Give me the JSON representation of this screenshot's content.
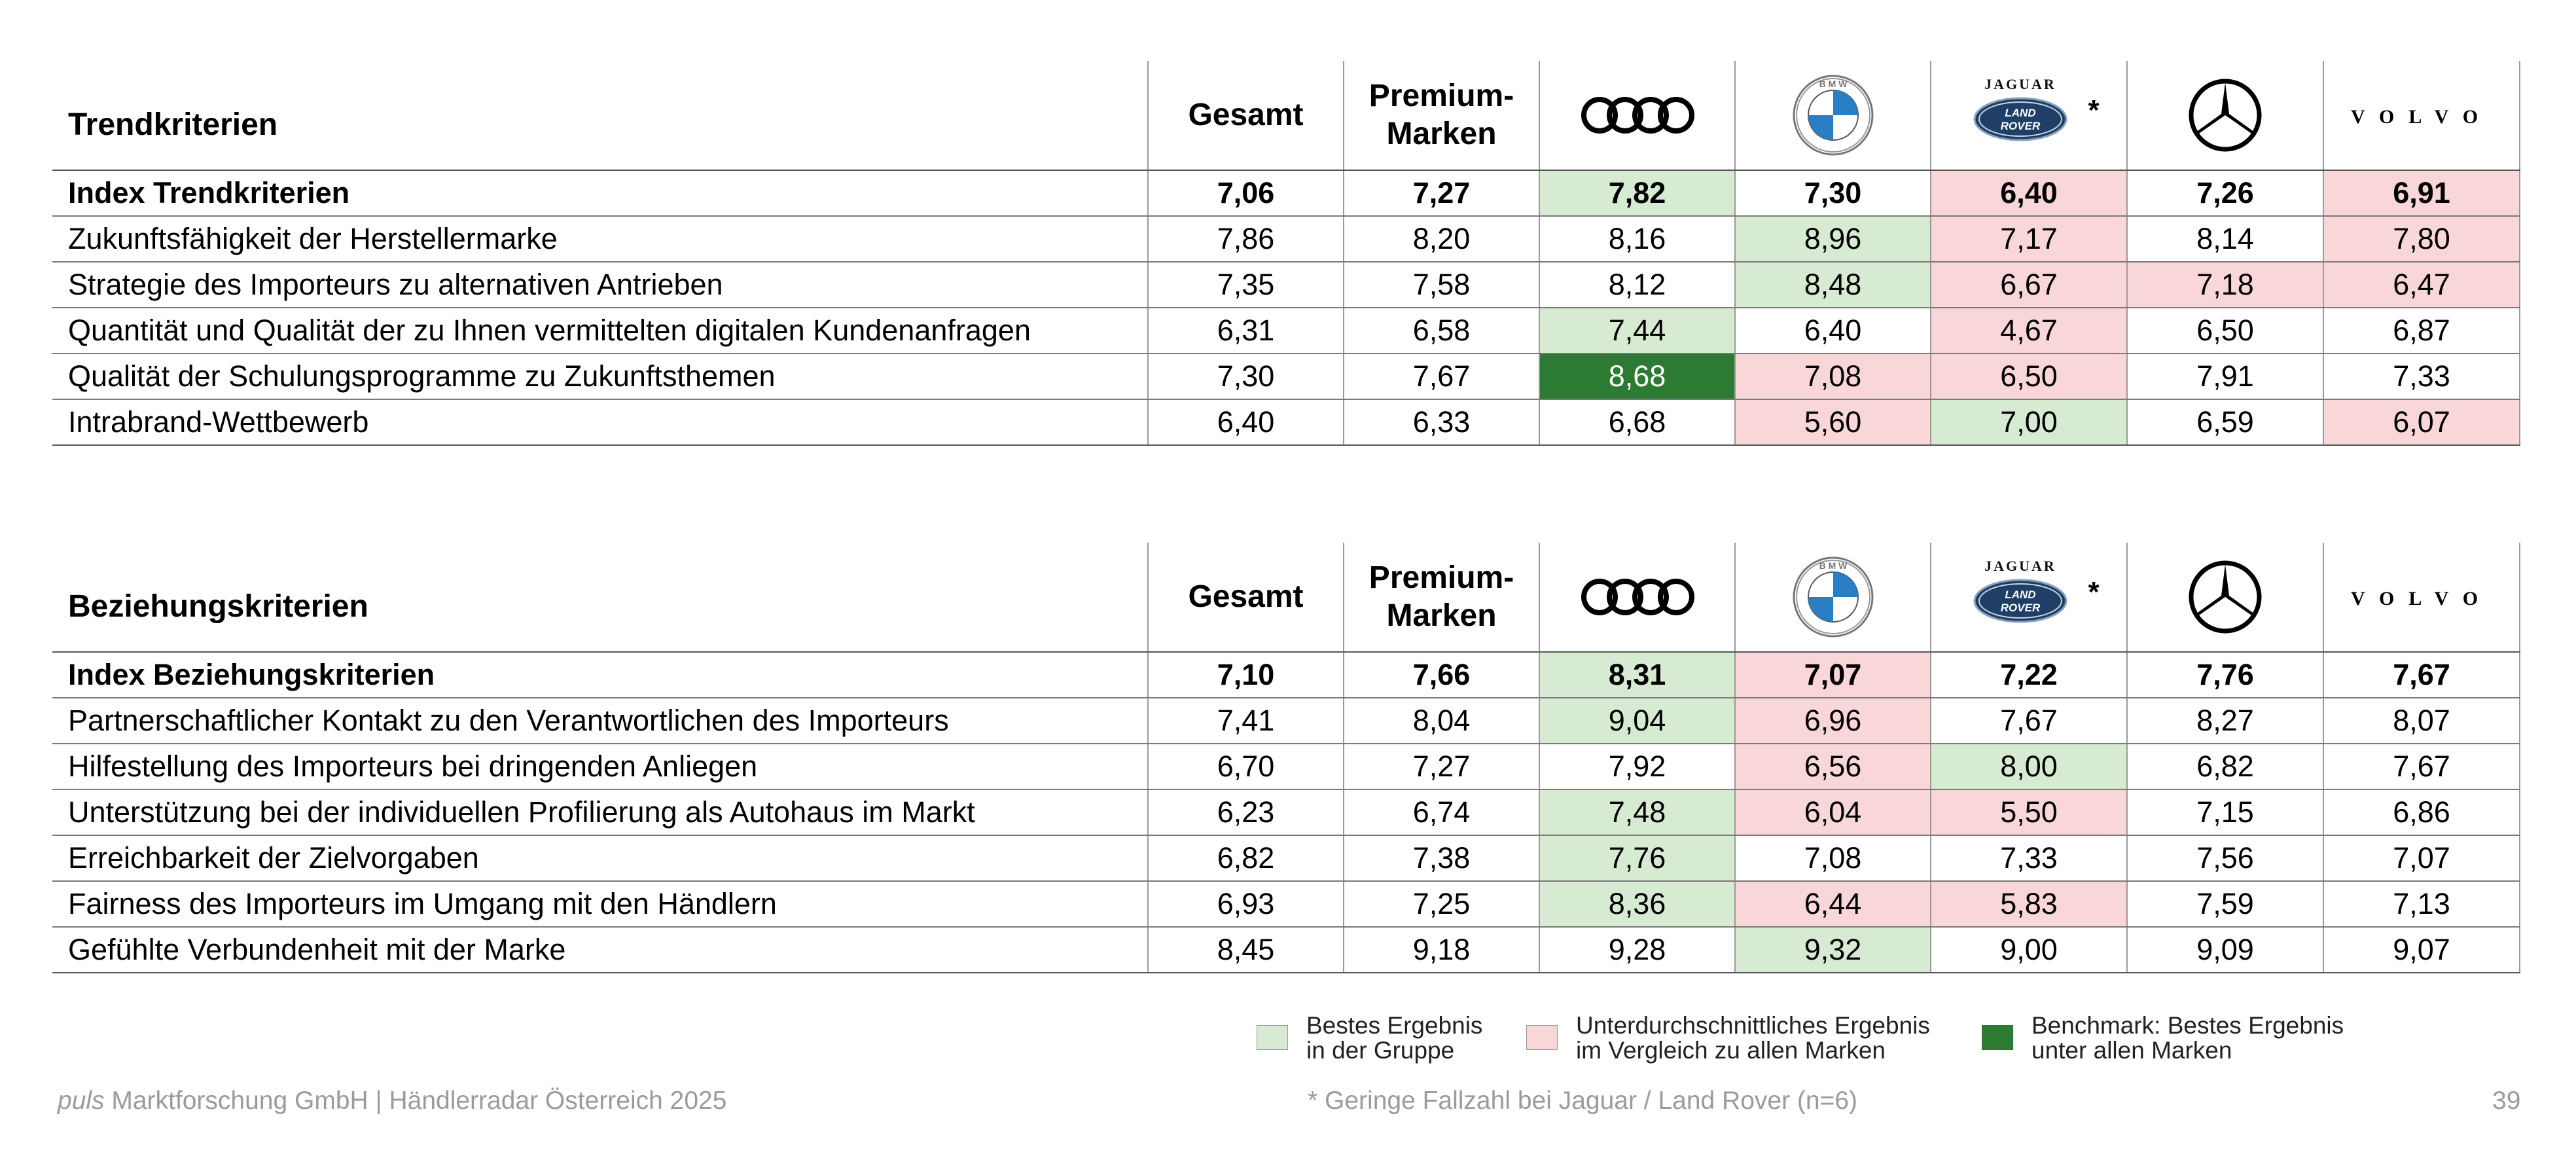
{
  "columns": {
    "gesamt": "Gesamt",
    "premium": "Premium-Marken",
    "brands": [
      "audi-logo",
      "bmw-logo",
      "jaguar-land-rover-logo",
      "mercedes-logo",
      "volvo-logo"
    ],
    "jaguar_wordmark": "JAGUAR",
    "landrover_wordmark_1": "LAND",
    "landrover_wordmark_2": "ROVER",
    "bmw_letters": "BMW",
    "volvo_wordmark": "VOLVO",
    "jlr_note_marker": "*"
  },
  "tables": [
    {
      "title": "Trendkriterien",
      "rows": [
        {
          "label": "Index Trendkriterien",
          "bold": true,
          "values": [
            "7,06",
            "7,27",
            "7,82",
            "7,30",
            "6,40",
            "7,26",
            "6,91"
          ],
          "shading": [
            "",
            "",
            "best",
            "",
            "below",
            "",
            "below"
          ]
        },
        {
          "label": "Zukunftsfähigkeit der Herstellermarke",
          "values": [
            "7,86",
            "8,20",
            "8,16",
            "8,96",
            "7,17",
            "8,14",
            "7,80"
          ],
          "shading": [
            "",
            "",
            "",
            "best",
            "below",
            "",
            "below"
          ]
        },
        {
          "label": "Strategie des Importeurs zu alternativen Antrieben",
          "values": [
            "7,35",
            "7,58",
            "8,12",
            "8,48",
            "6,67",
            "7,18",
            "6,47"
          ],
          "shading": [
            "",
            "",
            "",
            "best",
            "below",
            "below",
            "below"
          ]
        },
        {
          "label": "Quantität und Qualität der zu Ihnen vermittelten digitalen Kundenanfragen",
          "values": [
            "6,31",
            "6,58",
            "7,44",
            "6,40",
            "4,67",
            "6,50",
            "6,87"
          ],
          "shading": [
            "",
            "",
            "best",
            "",
            "below",
            "",
            ""
          ]
        },
        {
          "label": "Qualität der Schulungsprogramme zu Zukunftsthemen",
          "values": [
            "7,30",
            "7,67",
            "8,68",
            "7,08",
            "6,50",
            "7,91",
            "7,33"
          ],
          "shading": [
            "",
            "",
            "bench",
            "below",
            "below",
            "",
            ""
          ]
        },
        {
          "label": "Intrabrand-Wettbewerb",
          "values": [
            "6,40",
            "6,33",
            "6,68",
            "5,60",
            "7,00",
            "6,59",
            "6,07"
          ],
          "shading": [
            "",
            "",
            "",
            "below",
            "best",
            "",
            "below"
          ]
        }
      ]
    },
    {
      "title": "Beziehungskriterien",
      "rows": [
        {
          "label": "Index Beziehungskriterien",
          "bold": true,
          "values": [
            "7,10",
            "7,66",
            "8,31",
            "7,07",
            "7,22",
            "7,76",
            "7,67"
          ],
          "shading": [
            "",
            "",
            "best",
            "below",
            "",
            "",
            ""
          ]
        },
        {
          "label": "Partnerschaftlicher Kontakt zu den Verantwortlichen des Importeurs",
          "values": [
            "7,41",
            "8,04",
            "9,04",
            "6,96",
            "7,67",
            "8,27",
            "8,07"
          ],
          "shading": [
            "",
            "",
            "best",
            "below",
            "",
            "",
            ""
          ]
        },
        {
          "label": "Hilfestellung des Importeurs bei dringenden Anliegen",
          "values": [
            "6,70",
            "7,27",
            "7,92",
            "6,56",
            "8,00",
            "6,82",
            "7,67"
          ],
          "shading": [
            "",
            "",
            "",
            "below",
            "best",
            "",
            ""
          ]
        },
        {
          "label": "Unterstützung bei der individuellen Profilierung als Autohaus im Markt",
          "values": [
            "6,23",
            "6,74",
            "7,48",
            "6,04",
            "5,50",
            "7,15",
            "6,86"
          ],
          "shading": [
            "",
            "",
            "best",
            "below",
            "below",
            "",
            ""
          ]
        },
        {
          "label": "Erreichbarkeit der Zielvorgaben",
          "values": [
            "6,82",
            "7,38",
            "7,76",
            "7,08",
            "7,33",
            "7,56",
            "7,07"
          ],
          "shading": [
            "",
            "",
            "best",
            "",
            "",
            "",
            ""
          ]
        },
        {
          "label": "Fairness des Importeurs im Umgang mit den Händlern",
          "values": [
            "6,93",
            "7,25",
            "8,36",
            "6,44",
            "5,83",
            "7,59",
            "7,13"
          ],
          "shading": [
            "",
            "",
            "best",
            "below",
            "below",
            "",
            ""
          ]
        },
        {
          "label": "Gefühlte Verbundenheit mit der Marke",
          "values": [
            "8,45",
            "9,18",
            "9,28",
            "9,32",
            "9,00",
            "9,09",
            "9,07"
          ],
          "shading": [
            "",
            "",
            "",
            "best",
            "",
            "",
            ""
          ]
        }
      ]
    }
  ],
  "legend": [
    {
      "kind": "best",
      "line1": "Bestes Ergebnis",
      "line2": "in der Gruppe",
      "color": "#d7ead2"
    },
    {
      "kind": "below",
      "line1": "Unterdurchschnittliches Ergebnis",
      "line2": "im Vergleich zu allen Marken",
      "color": "#f9d6d8"
    },
    {
      "kind": "bench",
      "line1": "Benchmark: Bestes Ergebnis",
      "line2": "unter allen Marken",
      "color": "#2d7a33"
    }
  ],
  "footer": {
    "company_italic": "puls",
    "company_rest": " Marktforschung GmbH | Händlerradar Österreich 2025",
    "note": "* Geringe Fallzahl bei Jaguar / Land Rover (n=6)",
    "page": "39"
  }
}
